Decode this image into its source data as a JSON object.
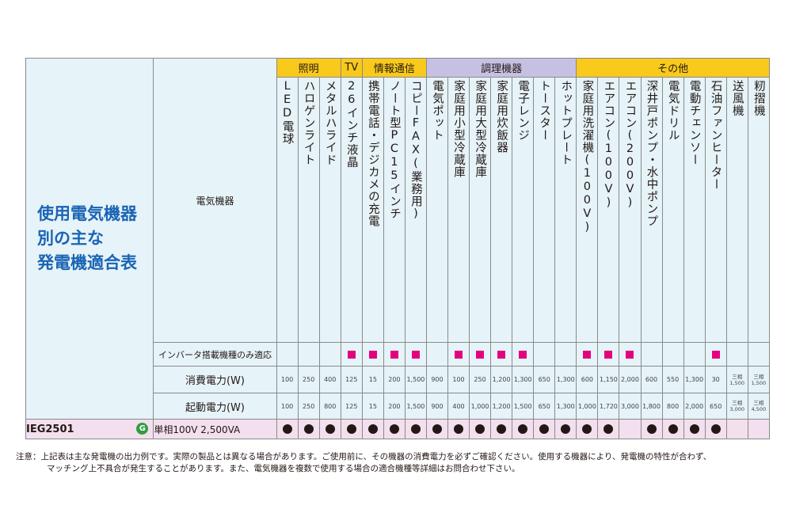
{
  "title_lines": [
    "使用電気機器",
    "別の主な",
    "発電機適合表"
  ],
  "header_label": "電気機器",
  "categories": [
    {
      "label": "照明",
      "span": 3,
      "color": "yellow"
    },
    {
      "label": "TV",
      "span": 1,
      "color": "yellow"
    },
    {
      "label": "情報通信",
      "span": 3,
      "color": "yellow"
    },
    {
      "label": "調理機器",
      "span": 7,
      "color": "purple"
    },
    {
      "label": "その他",
      "span": 9,
      "color": "yellow"
    }
  ],
  "devices": [
    {
      "name": "LED電球",
      "inverter": false,
      "power": "100",
      "start": "100",
      "fit": true
    },
    {
      "name": "ハロゲンライト",
      "inverter": false,
      "power": "250",
      "start": "250",
      "fit": true
    },
    {
      "name": "メタルハライド",
      "inverter": false,
      "power": "400",
      "start": "800",
      "fit": true
    },
    {
      "name": "26インチ液晶",
      "inverter": true,
      "power": "125",
      "start": "125",
      "fit": true
    },
    {
      "name": "携帯電話・デジカメの充電",
      "inverter": true,
      "power": "15",
      "start": "15",
      "fit": true
    },
    {
      "name": "ノート型PC15インチ",
      "inverter": true,
      "power": "200",
      "start": "200",
      "fit": true
    },
    {
      "name": "コピーFAX(業務用)",
      "inverter": true,
      "power": "1,500",
      "start": "1,500",
      "fit": true
    },
    {
      "name": "電気ポット",
      "inverter": false,
      "power": "900",
      "start": "900",
      "fit": true
    },
    {
      "name": "家庭用小型冷蔵庫",
      "inverter": true,
      "power": "100",
      "start": "400",
      "fit": true
    },
    {
      "name": "家庭用大型冷蔵庫",
      "inverter": true,
      "power": "250",
      "start": "1,000",
      "fit": true
    },
    {
      "name": "家庭用炊飯器",
      "inverter": true,
      "power": "1,200",
      "start": "1,200",
      "fit": true
    },
    {
      "name": "電子レンジ",
      "inverter": true,
      "power": "1,300",
      "start": "1,500",
      "fit": true
    },
    {
      "name": "トースター",
      "inverter": false,
      "power": "650",
      "start": "650",
      "fit": true
    },
    {
      "name": "ホットプレート",
      "inverter": false,
      "power": "1,300",
      "start": "1,300",
      "fit": true
    },
    {
      "name": "家庭用洗濯機(100V)",
      "inverter": true,
      "power": "600",
      "start": "1,000",
      "fit": true
    },
    {
      "name": "エアコン(100V)",
      "inverter": true,
      "power": "1,150",
      "start": "1,720",
      "fit": true
    },
    {
      "name": "エアコン(200V)",
      "inverter": true,
      "power": "2,000",
      "start": "3,000",
      "fit": false
    },
    {
      "name": "深井戸ポンプ・水中ポンプ",
      "inverter": false,
      "power": "600",
      "start": "1,800",
      "fit": true
    },
    {
      "name": "電気ドリル",
      "inverter": false,
      "power": "550",
      "start": "800",
      "fit": true
    },
    {
      "name": "電動チェンソー",
      "inverter": false,
      "power": "1,300",
      "start": "2,000",
      "fit": true
    },
    {
      "name": "石油ファンヒーター",
      "inverter": true,
      "power": "30",
      "start": "650",
      "fit": true
    },
    {
      "name": "送風機",
      "inverter": false,
      "power": "三相 1,500",
      "start": "三相 3,000",
      "fit": false
    },
    {
      "name": "籾摺機",
      "inverter": false,
      "power": "三相 1,500",
      "start": "三相 4,500",
      "fit": false
    }
  ],
  "rows": {
    "inverter_label": "インバータ搭載機種のみ適応",
    "power_label": "消費電力(W)",
    "start_label": "起動電力(W)"
  },
  "model": {
    "name": "IEG2501",
    "spec": "単相100V 2,500VA",
    "icon": "G"
  },
  "note": {
    "line1": "注意：上記表は主な発電機の出力例です。実際の製品とは異なる場合があります。ご使用前に、その機器の消費電力を必ずご確認ください。使用する機器により、発電機の特性が合わず、",
    "line2": "マッチング上不具合が発生することがあります。また、電気機器を複数で使用する場合の適合機種等詳細はお問合わせ下さい。"
  },
  "colors": {
    "yellow": "#f9c91b",
    "purple": "#c6c1e3",
    "magenta": "#e4007f",
    "title_blue": "#1a64b5"
  }
}
